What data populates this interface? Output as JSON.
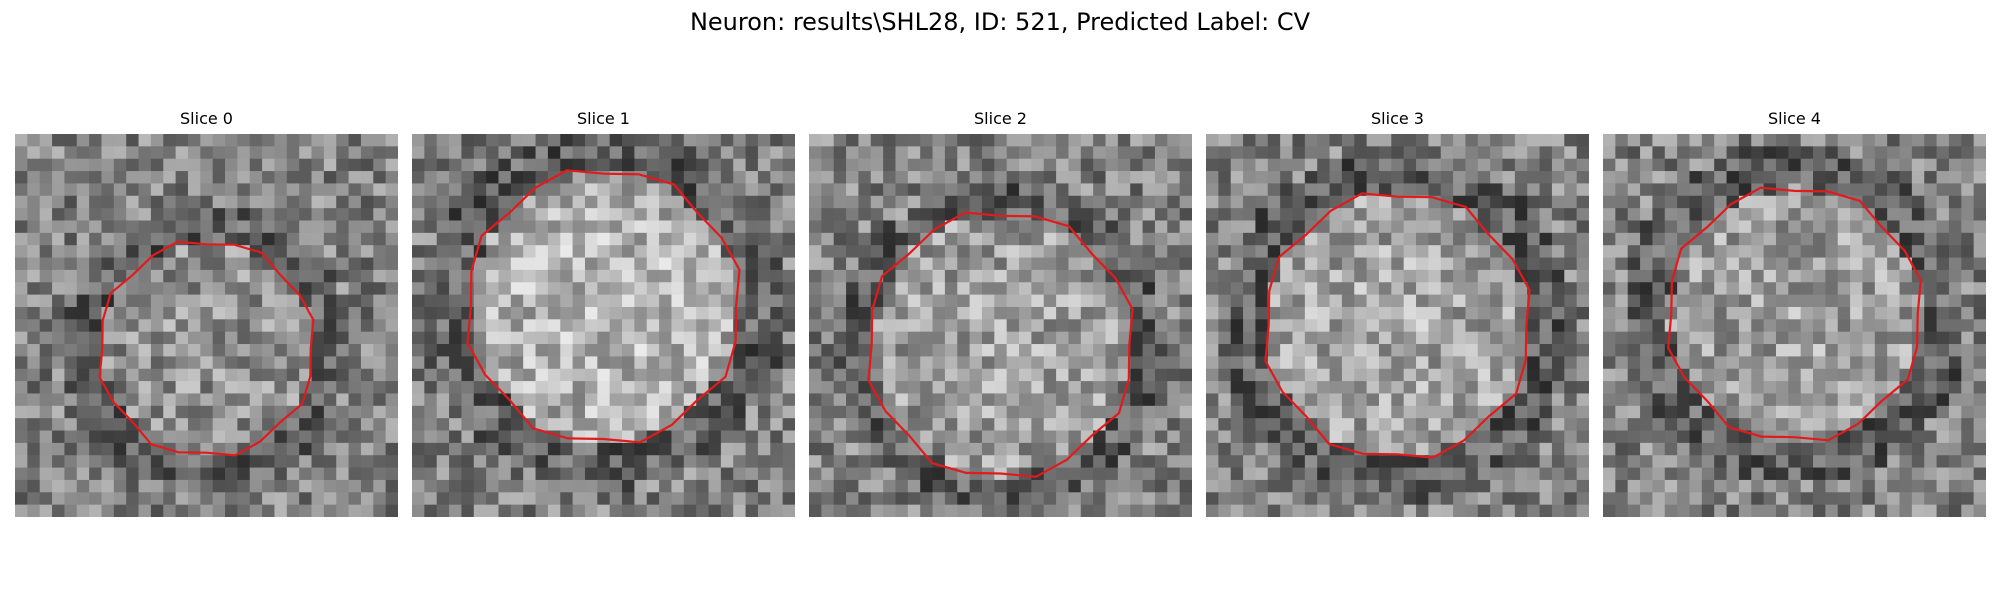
{
  "figure": {
    "title": "Neuron: results\\SHL28, ID: 521, Predicted Label: CV"
  },
  "panels": [
    {
      "title": "Slice 0",
      "seed": 11,
      "center": [
        0.5,
        0.56
      ],
      "radius": 0.55,
      "ring": 0.75,
      "bright": 150
    },
    {
      "title": "Slice 1",
      "seed": 23,
      "center": [
        0.5,
        0.45
      ],
      "radius": 0.7,
      "ring": 0.95,
      "bright": 185
    },
    {
      "title": "Slice 2",
      "seed": 37,
      "center": [
        0.5,
        0.55
      ],
      "radius": 0.68,
      "ring": 0.85,
      "bright": 165
    },
    {
      "title": "Slice 3",
      "seed": 41,
      "center": [
        0.5,
        0.5
      ],
      "radius": 0.68,
      "ring": 0.92,
      "bright": 170
    },
    {
      "title": "Slice 4",
      "seed": 59,
      "center": [
        0.5,
        0.47
      ],
      "radius": 0.65,
      "ring": 0.9,
      "bright": 165
    }
  ],
  "contour_color": "#e31a1c"
}
